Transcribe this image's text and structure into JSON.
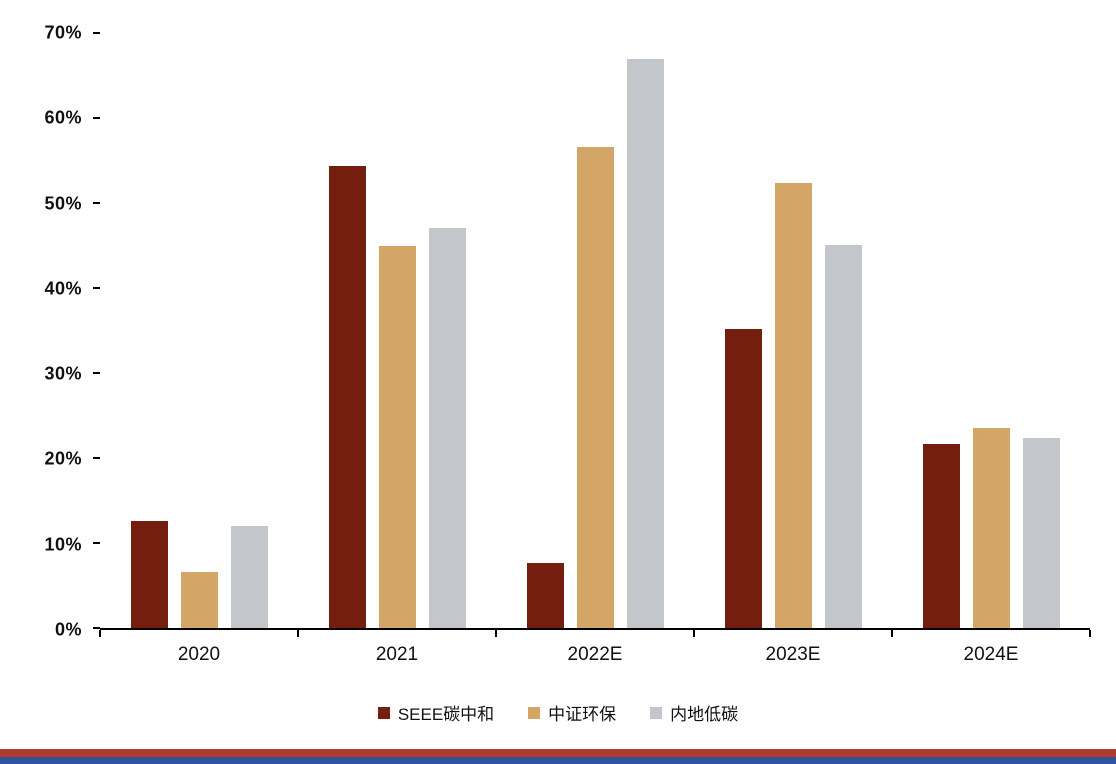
{
  "chart_data": {
    "type": "bar",
    "title": "",
    "xlabel": "",
    "ylabel": "",
    "categories": [
      "2020",
      "2021",
      "2022E",
      "2023E",
      "2024E"
    ],
    "series": [
      {
        "name": "SEEE碳中和",
        "color": "#731E0F",
        "values": [
          12.6,
          54.3,
          7.6,
          35.2,
          21.7
        ]
      },
      {
        "name": "中证环保",
        "color": "#D3A566",
        "values": [
          6.6,
          44.9,
          56.6,
          52.4,
          23.5
        ]
      },
      {
        "name": "内地低碳",
        "color": "#C3C6CB",
        "values": [
          12.0,
          47.1,
          66.9,
          45.1,
          22.4
        ]
      }
    ],
    "ylim": [
      0,
      70
    ],
    "ytick_step": 10,
    "ytick_labels": [
      "0%",
      "10%",
      "20%",
      "30%",
      "40%",
      "50%",
      "60%",
      "70%"
    ],
    "grid": false,
    "legend_position": "bottom"
  },
  "page": {
    "background": "#ffffff",
    "axis_color": "#000000",
    "text_color": "#111111",
    "bottom_stripe_red": "#B13A2C",
    "bottom_stripe_blue": "#2E54A0"
  }
}
